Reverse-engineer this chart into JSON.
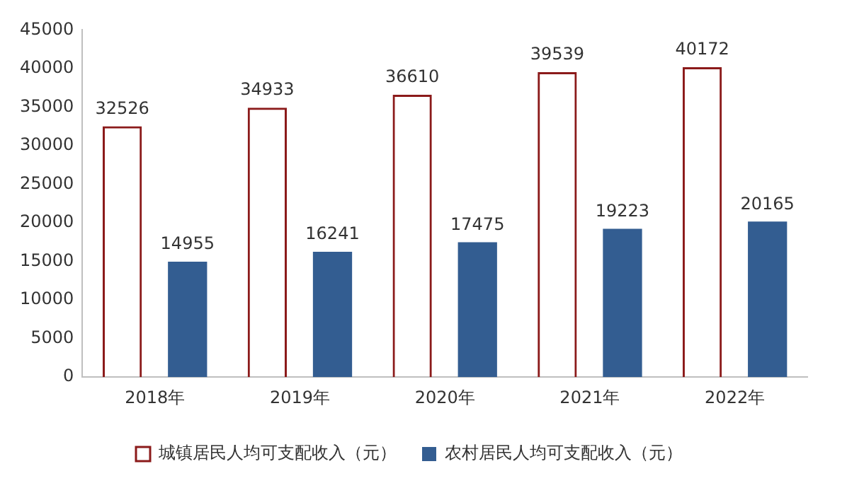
{
  "chart_data": {
    "type": "bar",
    "categories": [
      "2018年",
      "2019年",
      "2020年",
      "2021年",
      "2022年"
    ],
    "series": [
      {
        "name": "城镇居民人均可支配收入（元）",
        "color": "#8b1a1a",
        "values": [
          32526,
          34933,
          36610,
          39539,
          40172
        ]
      },
      {
        "name": "农村居民人均可支配收入（元）",
        "color": "#335d91",
        "values": [
          14955,
          16241,
          17475,
          19223,
          20165
        ]
      }
    ],
    "ylim": [
      0,
      45000
    ],
    "yticks": [
      0,
      5000,
      10000,
      15000,
      20000,
      25000,
      30000,
      35000,
      40000,
      45000
    ],
    "grid": false,
    "legend": "bottom",
    "data_labels": true
  }
}
